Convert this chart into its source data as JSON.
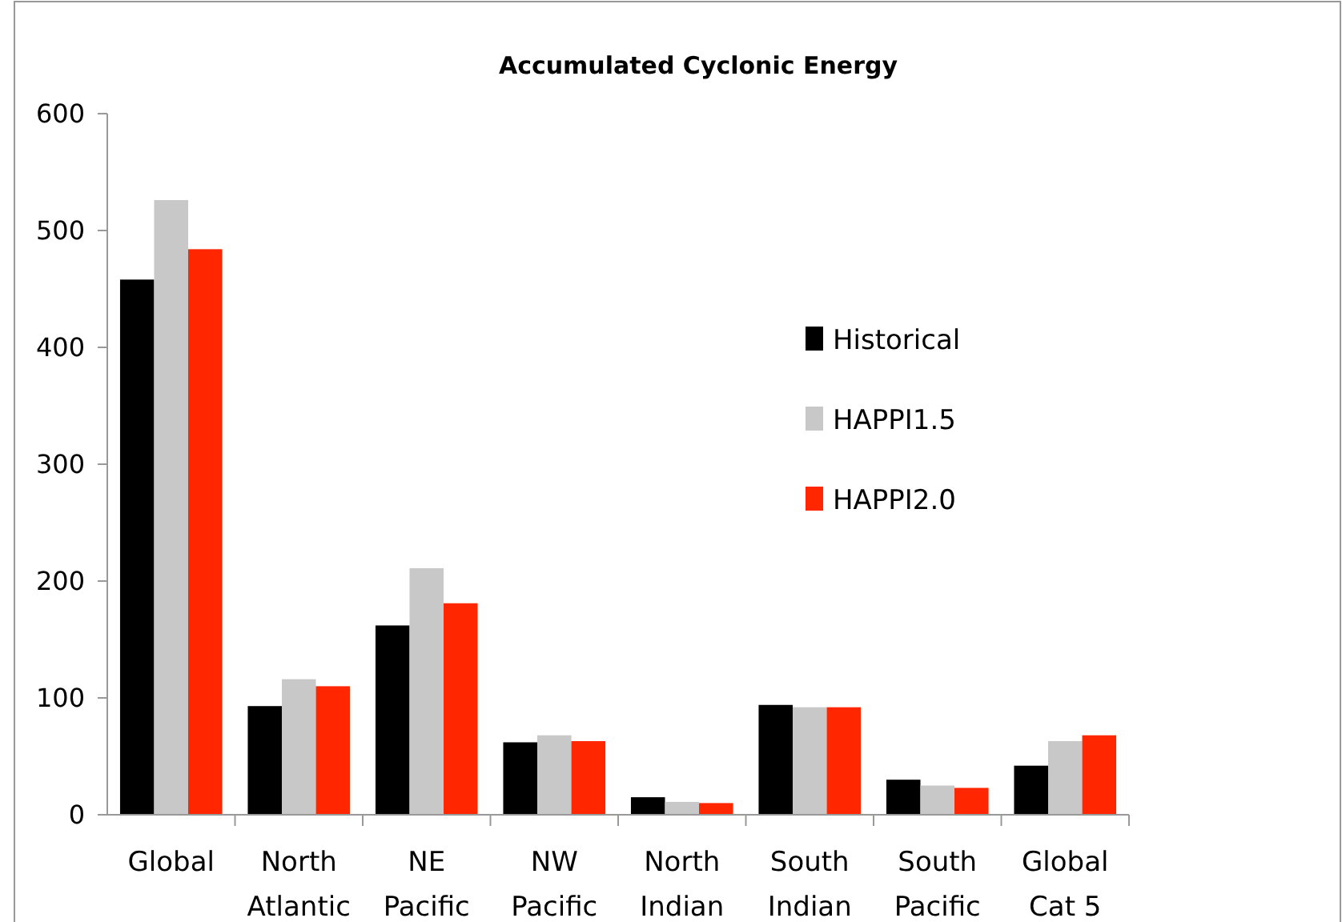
{
  "chart_data": {
    "type": "bar",
    "title": "Accumulated Cyclonic Energy",
    "categories": [
      "Global",
      "North Atlantic",
      "NE Pacific",
      "NW Pacific",
      "North Indian",
      "South Indian",
      "South Pacific",
      "Global Cat 5"
    ],
    "series": [
      {
        "name": "Historical",
        "color": "#000000",
        "values": [
          458,
          93,
          162,
          62,
          15,
          94,
          30,
          42
        ]
      },
      {
        "name": "HAPPI1.5",
        "color": "#c8c8c8",
        "values": [
          526,
          116,
          211,
          68,
          11,
          92,
          25,
          63
        ]
      },
      {
        "name": "HAPPI2.0",
        "color": "#ff2600",
        "values": [
          484,
          110,
          181,
          63,
          10,
          92,
          23,
          68
        ]
      }
    ],
    "ylim": [
      0,
      600
    ],
    "yticks": [
      0,
      100,
      200,
      300,
      400,
      500,
      600
    ],
    "grid": false,
    "legend": "right"
  }
}
